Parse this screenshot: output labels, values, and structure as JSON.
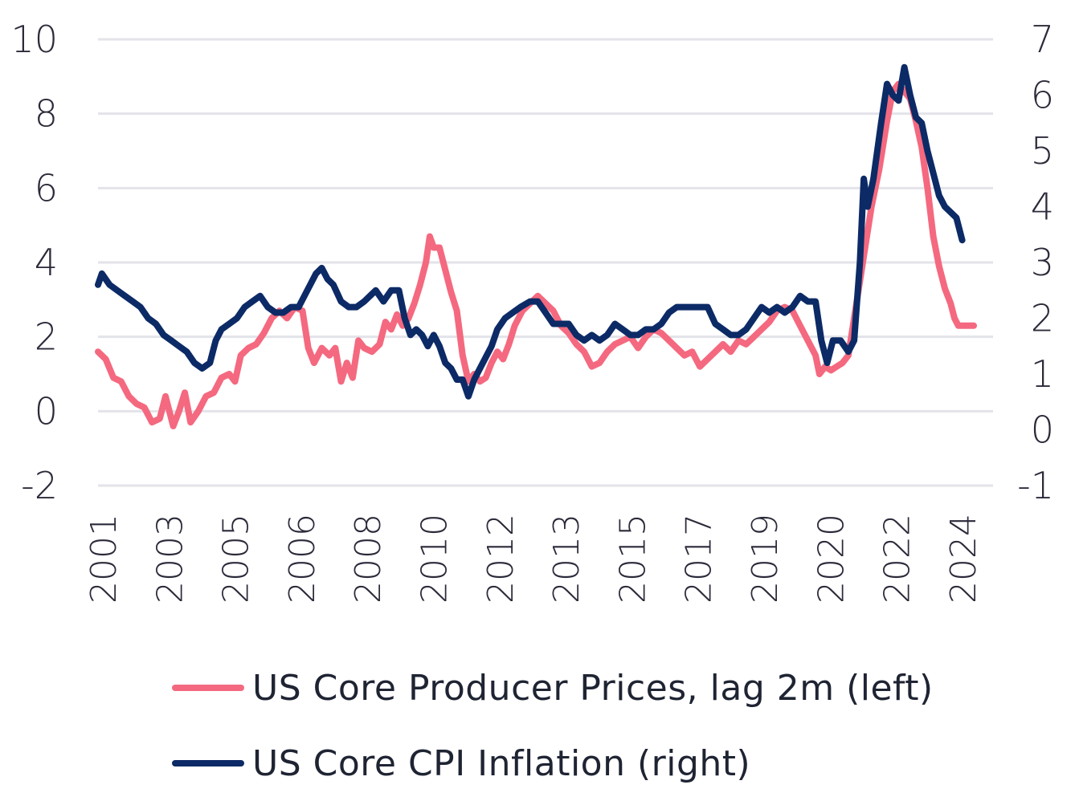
{
  "chart_data": {
    "type": "line",
    "x_ticks": [
      "2001",
      "2003",
      "2005",
      "2006",
      "2008",
      "2010",
      "2012",
      "2013",
      "2015",
      "2017",
      "2019",
      "2020",
      "2022",
      "2024"
    ],
    "y_left": {
      "ticks": [
        "10",
        "8",
        "6",
        "4",
        "2",
        "0",
        "-2"
      ],
      "range": [
        -2,
        10
      ]
    },
    "y_right": {
      "ticks": [
        "7",
        "6",
        "5",
        "4",
        "3",
        "2",
        "1",
        "0",
        "-1"
      ],
      "range": [
        -1,
        7
      ]
    },
    "grid": "horizontal",
    "legend_position": "bottom",
    "series": [
      {
        "name": "US Core Producer Prices, lag 2m (left)",
        "axis": "left",
        "color": "#f4697f",
        "points": [
          [
            2001.0,
            1.6
          ],
          [
            2001.2,
            1.4
          ],
          [
            2001.4,
            0.9
          ],
          [
            2001.6,
            0.8
          ],
          [
            2001.8,
            0.4
          ],
          [
            2002.0,
            0.2
          ],
          [
            2002.2,
            0.1
          ],
          [
            2002.4,
            -0.3
          ],
          [
            2002.6,
            -0.2
          ],
          [
            2002.75,
            0.4
          ],
          [
            2002.95,
            -0.4
          ],
          [
            2003.1,
            0.0
          ],
          [
            2003.25,
            0.5
          ],
          [
            2003.4,
            -0.3
          ],
          [
            2003.6,
            0.0
          ],
          [
            2003.8,
            0.4
          ],
          [
            2004.0,
            0.5
          ],
          [
            2004.2,
            0.9
          ],
          [
            2004.4,
            1.0
          ],
          [
            2004.55,
            0.8
          ],
          [
            2004.7,
            1.5
          ],
          [
            2004.9,
            1.7
          ],
          [
            2005.1,
            1.8
          ],
          [
            2005.3,
            2.1
          ],
          [
            2005.5,
            2.5
          ],
          [
            2005.7,
            2.7
          ],
          [
            2005.9,
            2.5
          ],
          [
            2006.1,
            2.8
          ],
          [
            2006.3,
            2.7
          ],
          [
            2006.45,
            1.7
          ],
          [
            2006.6,
            1.3
          ],
          [
            2006.8,
            1.7
          ],
          [
            2007.0,
            1.5
          ],
          [
            2007.15,
            1.7
          ],
          [
            2007.3,
            0.8
          ],
          [
            2007.45,
            1.3
          ],
          [
            2007.6,
            0.9
          ],
          [
            2007.75,
            1.9
          ],
          [
            2007.9,
            1.7
          ],
          [
            2008.1,
            1.6
          ],
          [
            2008.3,
            1.8
          ],
          [
            2008.45,
            2.4
          ],
          [
            2008.6,
            2.2
          ],
          [
            2008.75,
            2.6
          ],
          [
            2008.9,
            2.3
          ],
          [
            2009.05,
            2.5
          ],
          [
            2009.2,
            2.9
          ],
          [
            2009.35,
            3.4
          ],
          [
            2009.5,
            4.0
          ],
          [
            2009.6,
            4.7
          ],
          [
            2009.7,
            4.4
          ],
          [
            2009.85,
            4.4
          ],
          [
            2010.0,
            3.8
          ],
          [
            2010.15,
            3.2
          ],
          [
            2010.3,
            2.7
          ],
          [
            2010.45,
            1.5
          ],
          [
            2010.6,
            0.8
          ],
          [
            2010.75,
            1.0
          ],
          [
            2010.9,
            0.8
          ],
          [
            2011.05,
            0.9
          ],
          [
            2011.2,
            1.3
          ],
          [
            2011.35,
            1.6
          ],
          [
            2011.5,
            1.4
          ],
          [
            2011.65,
            1.8
          ],
          [
            2011.8,
            2.3
          ],
          [
            2012.0,
            2.7
          ],
          [
            2012.2,
            2.9
          ],
          [
            2012.4,
            3.1
          ],
          [
            2012.6,
            2.9
          ],
          [
            2012.8,
            2.7
          ],
          [
            2013.0,
            2.3
          ],
          [
            2013.2,
            2.1
          ],
          [
            2013.4,
            1.8
          ],
          [
            2013.6,
            1.6
          ],
          [
            2013.8,
            1.2
          ],
          [
            2014.0,
            1.3
          ],
          [
            2014.2,
            1.6
          ],
          [
            2014.4,
            1.8
          ],
          [
            2014.6,
            1.9
          ],
          [
            2014.8,
            2.0
          ],
          [
            2015.0,
            1.7
          ],
          [
            2015.2,
            2.0
          ],
          [
            2015.4,
            2.2
          ],
          [
            2015.6,
            2.1
          ],
          [
            2015.8,
            1.9
          ],
          [
            2016.0,
            1.7
          ],
          [
            2016.2,
            1.5
          ],
          [
            2016.4,
            1.6
          ],
          [
            2016.6,
            1.2
          ],
          [
            2016.8,
            1.4
          ],
          [
            2017.0,
            1.6
          ],
          [
            2017.2,
            1.8
          ],
          [
            2017.4,
            1.6
          ],
          [
            2017.6,
            1.9
          ],
          [
            2017.8,
            1.8
          ],
          [
            2018.0,
            2.0
          ],
          [
            2018.2,
            2.2
          ],
          [
            2018.4,
            2.4
          ],
          [
            2018.6,
            2.7
          ],
          [
            2018.8,
            2.8
          ],
          [
            2019.0,
            2.7
          ],
          [
            2019.2,
            2.3
          ],
          [
            2019.4,
            1.9
          ],
          [
            2019.6,
            1.5
          ],
          [
            2019.7,
            1.0
          ],
          [
            2019.85,
            1.2
          ],
          [
            2020.0,
            1.1
          ],
          [
            2020.15,
            1.2
          ],
          [
            2020.3,
            1.3
          ],
          [
            2020.45,
            1.5
          ],
          [
            2020.6,
            2.5
          ],
          [
            2020.75,
            3.5
          ],
          [
            2020.9,
            4.5
          ],
          [
            2021.05,
            5.5
          ],
          [
            2021.25,
            6.5
          ],
          [
            2021.45,
            7.8
          ],
          [
            2021.6,
            8.6
          ],
          [
            2021.75,
            8.8
          ],
          [
            2021.9,
            8.6
          ],
          [
            2022.05,
            8.4
          ],
          [
            2022.2,
            7.8
          ],
          [
            2022.35,
            7.1
          ],
          [
            2022.5,
            6.0
          ],
          [
            2022.65,
            4.7
          ],
          [
            2022.8,
            3.9
          ],
          [
            2022.95,
            3.3
          ],
          [
            2023.1,
            2.9
          ],
          [
            2023.2,
            2.5
          ],
          [
            2023.3,
            2.3
          ],
          [
            2023.5,
            2.3
          ],
          [
            2023.7,
            2.3
          ]
        ]
      },
      {
        "name": "US Core CPI Inflation (right)",
        "axis": "right",
        "color": "#0c2a66",
        "points": [
          [
            2001.0,
            2.6
          ],
          [
            2001.1,
            2.8
          ],
          [
            2001.3,
            2.6
          ],
          [
            2001.5,
            2.5
          ],
          [
            2001.7,
            2.4
          ],
          [
            2001.9,
            2.3
          ],
          [
            2002.1,
            2.2
          ],
          [
            2002.3,
            2.0
          ],
          [
            2002.5,
            1.9
          ],
          [
            2002.7,
            1.7
          ],
          [
            2002.9,
            1.6
          ],
          [
            2003.1,
            1.5
          ],
          [
            2003.3,
            1.4
          ],
          [
            2003.5,
            1.2
          ],
          [
            2003.7,
            1.1
          ],
          [
            2003.9,
            1.2
          ],
          [
            2004.05,
            1.6
          ],
          [
            2004.2,
            1.8
          ],
          [
            2004.4,
            1.9
          ],
          [
            2004.6,
            2.0
          ],
          [
            2004.8,
            2.2
          ],
          [
            2005.0,
            2.3
          ],
          [
            2005.2,
            2.4
          ],
          [
            2005.4,
            2.2
          ],
          [
            2005.6,
            2.1
          ],
          [
            2005.8,
            2.1
          ],
          [
            2006.0,
            2.2
          ],
          [
            2006.2,
            2.2
          ],
          [
            2006.35,
            2.4
          ],
          [
            2006.5,
            2.6
          ],
          [
            2006.65,
            2.8
          ],
          [
            2006.8,
            2.9
          ],
          [
            2006.95,
            2.7
          ],
          [
            2007.1,
            2.6
          ],
          [
            2007.3,
            2.3
          ],
          [
            2007.5,
            2.2
          ],
          [
            2007.7,
            2.2
          ],
          [
            2007.9,
            2.3
          ],
          [
            2008.05,
            2.4
          ],
          [
            2008.2,
            2.5
          ],
          [
            2008.4,
            2.3
          ],
          [
            2008.6,
            2.5
          ],
          [
            2008.8,
            2.5
          ],
          [
            2008.95,
            2.0
          ],
          [
            2009.1,
            1.7
          ],
          [
            2009.25,
            1.8
          ],
          [
            2009.4,
            1.7
          ],
          [
            2009.55,
            1.5
          ],
          [
            2009.7,
            1.7
          ],
          [
            2009.85,
            1.5
          ],
          [
            2010.0,
            1.2
          ],
          [
            2010.15,
            1.1
          ],
          [
            2010.3,
            0.9
          ],
          [
            2010.45,
            0.9
          ],
          [
            2010.6,
            0.6
          ],
          [
            2010.75,
            0.9
          ],
          [
            2010.9,
            1.1
          ],
          [
            2011.05,
            1.3
          ],
          [
            2011.2,
            1.5
          ],
          [
            2011.35,
            1.8
          ],
          [
            2011.55,
            2.0
          ],
          [
            2011.75,
            2.1
          ],
          [
            2011.95,
            2.2
          ],
          [
            2012.2,
            2.3
          ],
          [
            2012.4,
            2.3
          ],
          [
            2012.6,
            2.1
          ],
          [
            2012.8,
            1.9
          ],
          [
            2013.0,
            1.9
          ],
          [
            2013.2,
            1.9
          ],
          [
            2013.4,
            1.7
          ],
          [
            2013.6,
            1.6
          ],
          [
            2013.8,
            1.7
          ],
          [
            2014.0,
            1.6
          ],
          [
            2014.2,
            1.7
          ],
          [
            2014.4,
            1.9
          ],
          [
            2014.6,
            1.8
          ],
          [
            2014.8,
            1.7
          ],
          [
            2015.0,
            1.7
          ],
          [
            2015.2,
            1.8
          ],
          [
            2015.4,
            1.8
          ],
          [
            2015.6,
            1.9
          ],
          [
            2015.8,
            2.1
          ],
          [
            2016.0,
            2.2
          ],
          [
            2016.2,
            2.2
          ],
          [
            2016.4,
            2.2
          ],
          [
            2016.6,
            2.2
          ],
          [
            2016.8,
            2.2
          ],
          [
            2017.0,
            1.9
          ],
          [
            2017.2,
            1.8
          ],
          [
            2017.4,
            1.7
          ],
          [
            2017.6,
            1.7
          ],
          [
            2017.8,
            1.8
          ],
          [
            2018.0,
            2.0
          ],
          [
            2018.2,
            2.2
          ],
          [
            2018.4,
            2.1
          ],
          [
            2018.6,
            2.2
          ],
          [
            2018.8,
            2.1
          ],
          [
            2019.0,
            2.2
          ],
          [
            2019.2,
            2.4
          ],
          [
            2019.4,
            2.3
          ],
          [
            2019.6,
            2.3
          ],
          [
            2019.75,
            1.6
          ],
          [
            2019.9,
            1.2
          ],
          [
            2020.05,
            1.6
          ],
          [
            2020.25,
            1.6
          ],
          [
            2020.45,
            1.4
          ],
          [
            2020.6,
            1.6
          ],
          [
            2020.75,
            3.0
          ],
          [
            2020.85,
            4.5
          ],
          [
            2020.95,
            4.0
          ],
          [
            2021.1,
            4.5
          ],
          [
            2021.3,
            5.5
          ],
          [
            2021.45,
            6.2
          ],
          [
            2021.6,
            6.0
          ],
          [
            2021.75,
            5.9
          ],
          [
            2021.9,
            6.5
          ],
          [
            2022.05,
            6.0
          ],
          [
            2022.2,
            5.6
          ],
          [
            2022.35,
            5.5
          ],
          [
            2022.5,
            5.0
          ],
          [
            2022.65,
            4.6
          ],
          [
            2022.8,
            4.2
          ],
          [
            2022.95,
            4.0
          ],
          [
            2023.1,
            3.9
          ],
          [
            2023.25,
            3.8
          ],
          [
            2023.4,
            3.4
          ]
        ]
      }
    ]
  }
}
